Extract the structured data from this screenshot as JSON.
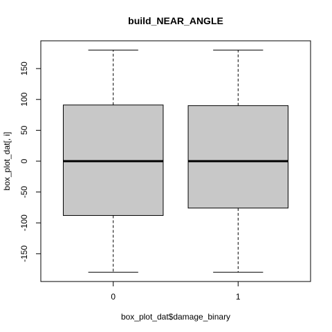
{
  "chart_data": {
    "type": "boxplot",
    "title": "build_NEAR_ANGLE",
    "xlabel": "box_plot_dat$damage_binary",
    "ylabel": "box_plot_dat[, i]",
    "categories": [
      "0",
      "1"
    ],
    "boxes": [
      {
        "category": "0",
        "min": -180,
        "q1": -88,
        "median": 0,
        "q3": 91,
        "max": 180
      },
      {
        "category": "1",
        "min": -180,
        "q1": -76,
        "median": 0,
        "q3": 90,
        "max": 180
      }
    ],
    "y_ticks": [
      -150,
      -100,
      -50,
      0,
      50,
      100,
      150
    ],
    "y_tick_labels": [
      "-150",
      "-100",
      "-50",
      "0",
      "50",
      "100",
      "150"
    ],
    "ylim": [
      -195,
      195
    ],
    "box_fill": "#c8c8c8",
    "grid": false
  }
}
